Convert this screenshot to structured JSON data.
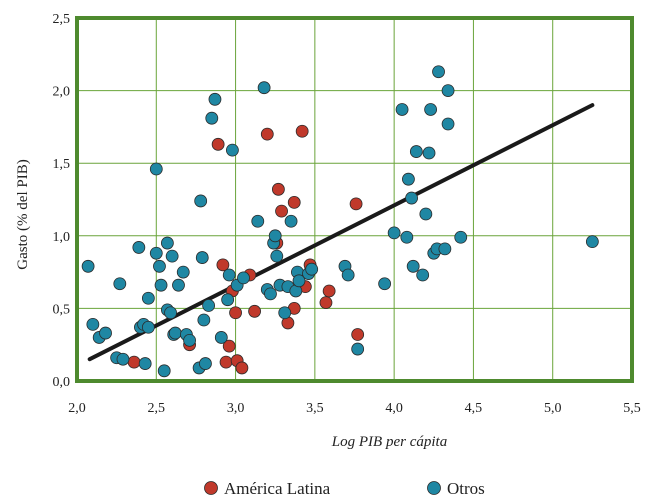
{
  "chart_data": {
    "type": "scatter",
    "title": "",
    "xlabel": "Log PIB per cápita",
    "ylabel": "Gasto (% del PIB)",
    "xlim": [
      2.0,
      5.5
    ],
    "ylim": [
      0.0,
      2.5
    ],
    "x_ticks": [
      "2,0",
      "2,5",
      "3,0",
      "3,5",
      "4,0",
      "4,5",
      "5,0",
      "5,5"
    ],
    "y_ticks": [
      "0,0",
      "0,5",
      "1,0",
      "1,5",
      "2,0",
      "2,5"
    ],
    "grid": true,
    "legend_position": "bottom",
    "frame_color": "#4e8a2e",
    "grid_color": "#6aa43a",
    "trend_line": {
      "x": [
        2.08,
        5.25
      ],
      "y": [
        0.15,
        1.9
      ],
      "color": "#1a1a1a"
    },
    "series": [
      {
        "name": "América Latina",
        "color": "#c0392b",
        "points": [
          [
            2.36,
            0.13
          ],
          [
            2.71,
            0.25
          ],
          [
            2.89,
            1.63
          ],
          [
            2.92,
            0.8
          ],
          [
            2.94,
            0.13
          ],
          [
            2.96,
            0.24
          ],
          [
            2.98,
            0.62
          ],
          [
            3.0,
            0.47
          ],
          [
            3.01,
            0.14
          ],
          [
            3.04,
            0.09
          ],
          [
            3.09,
            0.73
          ],
          [
            3.12,
            0.48
          ],
          [
            3.2,
            1.7
          ],
          [
            3.26,
            0.95
          ],
          [
            3.27,
            1.32
          ],
          [
            3.29,
            1.17
          ],
          [
            3.33,
            0.4
          ],
          [
            3.37,
            1.23
          ],
          [
            3.37,
            0.5
          ],
          [
            3.42,
            1.72
          ],
          [
            3.44,
            0.65
          ],
          [
            3.47,
            0.8
          ],
          [
            3.57,
            0.54
          ],
          [
            3.59,
            0.62
          ],
          [
            3.76,
            1.22
          ],
          [
            3.77,
            0.32
          ]
        ]
      },
      {
        "name": "Otros",
        "color": "#1f87a3",
        "points": [
          [
            2.07,
            0.79
          ],
          [
            2.1,
            0.39
          ],
          [
            2.14,
            0.3
          ],
          [
            2.18,
            0.33
          ],
          [
            2.25,
            0.16
          ],
          [
            2.27,
            0.67
          ],
          [
            2.29,
            0.15
          ],
          [
            2.39,
            0.92
          ],
          [
            2.4,
            0.37
          ],
          [
            2.42,
            0.39
          ],
          [
            2.43,
            0.12
          ],
          [
            2.45,
            0.57
          ],
          [
            2.45,
            0.37
          ],
          [
            2.5,
            1.46
          ],
          [
            2.5,
            0.88
          ],
          [
            2.52,
            0.79
          ],
          [
            2.53,
            0.66
          ],
          [
            2.55,
            0.07
          ],
          [
            2.57,
            0.49
          ],
          [
            2.57,
            0.95
          ],
          [
            2.59,
            0.47
          ],
          [
            2.6,
            0.86
          ],
          [
            2.61,
            0.32
          ],
          [
            2.62,
            0.33
          ],
          [
            2.64,
            0.66
          ],
          [
            2.67,
            0.75
          ],
          [
            2.69,
            0.32
          ],
          [
            2.71,
            0.28
          ],
          [
            2.77,
            0.09
          ],
          [
            2.78,
            1.24
          ],
          [
            2.79,
            0.85
          ],
          [
            2.8,
            0.42
          ],
          [
            2.81,
            0.12
          ],
          [
            2.83,
            0.52
          ],
          [
            2.85,
            1.81
          ],
          [
            2.87,
            1.94
          ],
          [
            2.91,
            0.3
          ],
          [
            2.95,
            0.56
          ],
          [
            2.96,
            0.73
          ],
          [
            2.98,
            1.59
          ],
          [
            3.01,
            0.66
          ],
          [
            3.05,
            0.71
          ],
          [
            3.14,
            1.1
          ],
          [
            3.18,
            2.02
          ],
          [
            3.2,
            0.63
          ],
          [
            3.22,
            0.6
          ],
          [
            3.24,
            0.95
          ],
          [
            3.25,
            1.0
          ],
          [
            3.26,
            0.86
          ],
          [
            3.28,
            0.66
          ],
          [
            3.31,
            0.47
          ],
          [
            3.33,
            0.65
          ],
          [
            3.35,
            1.1
          ],
          [
            3.38,
            0.62
          ],
          [
            3.39,
            0.75
          ],
          [
            3.4,
            0.69
          ],
          [
            3.46,
            0.74
          ],
          [
            3.48,
            0.77
          ],
          [
            3.69,
            0.79
          ],
          [
            3.71,
            0.73
          ],
          [
            3.77,
            0.22
          ],
          [
            3.94,
            0.67
          ],
          [
            4.0,
            1.02
          ],
          [
            4.05,
            1.87
          ],
          [
            4.08,
            0.99
          ],
          [
            4.09,
            1.39
          ],
          [
            4.11,
            1.26
          ],
          [
            4.12,
            0.79
          ],
          [
            4.14,
            1.58
          ],
          [
            4.18,
            0.73
          ],
          [
            4.2,
            1.15
          ],
          [
            4.22,
            1.57
          ],
          [
            4.23,
            1.87
          ],
          [
            4.25,
            0.88
          ],
          [
            4.27,
            0.91
          ],
          [
            4.28,
            2.13
          ],
          [
            4.32,
            0.91
          ],
          [
            4.34,
            1.77
          ],
          [
            4.34,
            2.0
          ],
          [
            4.42,
            0.99
          ],
          [
            5.25,
            0.96
          ]
        ]
      }
    ]
  }
}
